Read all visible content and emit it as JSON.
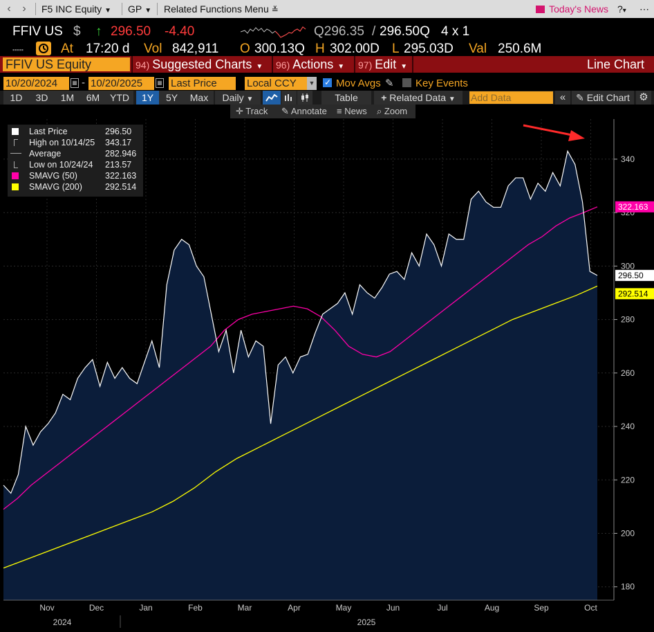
{
  "topbar": {
    "security_menu": "F5 INC Equity",
    "gp_menu": "GP",
    "related_menu": "Related Functions Menu",
    "news_label": "Today's News"
  },
  "quote": {
    "ticker": "FFIV US",
    "currency_symbol": "$",
    "last": "296.50",
    "change": "-4.40",
    "bid": "Q296.35",
    "ask": "296.50Q",
    "size": "4 x 1",
    "at_label": "At",
    "time": "17:20 d",
    "vol_label": "Vol",
    "vol": "842,911",
    "open_label": "O",
    "open": "300.13Q",
    "high_label": "H",
    "high": "302.00D",
    "low_label": "L",
    "low": "295.03D",
    "val_label": "Val",
    "val": "250.6M"
  },
  "funcbar": {
    "ticker_field": "FFIV US Equity",
    "items": [
      {
        "num": "94)",
        "label": "Suggested Charts"
      },
      {
        "num": "96)",
        "label": "Actions"
      },
      {
        "num": "97)",
        "label": "Edit"
      }
    ],
    "chart_type": "Line Chart"
  },
  "settings": {
    "start_date": "10/20/2024",
    "end_date": "10/20/2025",
    "field": "Last Price",
    "currency": "Local CCY",
    "mov_avgs": "Mov Avgs",
    "key_events": "Key Events"
  },
  "periods": [
    "1D",
    "3D",
    "1M",
    "6M",
    "YTD",
    "1Y",
    "5Y",
    "Max"
  ],
  "active_period": "1Y",
  "frequency": "Daily",
  "table_label": "Table",
  "related_data": "Related Data",
  "add_data_placeholder": "Add Data",
  "edit_chart": "Edit Chart",
  "tools": [
    "Track",
    "Annotate",
    "News",
    "Zoom"
  ],
  "legend": [
    {
      "label": "Last Price",
      "value": "296.50",
      "color": "#ffffff"
    },
    {
      "label": "High on 10/14/25",
      "value": "343.17",
      "color": ""
    },
    {
      "label": "Average",
      "value": "282.946",
      "color": ""
    },
    {
      "label": "Low on 10/24/24",
      "value": "213.57",
      "color": ""
    },
    {
      "label": "SMAVG (50)",
      "value": "322.163",
      "color": "#ff00a8"
    },
    {
      "label": "SMAVG (200)",
      "value": "292.514",
      "color": "#ffff00"
    }
  ],
  "chart_data": {
    "type": "area",
    "ylim": [
      175,
      355
    ],
    "yticks": [
      180,
      200,
      220,
      240,
      260,
      280,
      300,
      320,
      340
    ],
    "month_labels": [
      "Nov",
      "Dec",
      "Jan",
      "Feb",
      "Mar",
      "Apr",
      "May",
      "Jun",
      "Jul",
      "Aug",
      "Sep",
      "Oct"
    ],
    "year_labels": [
      "2024",
      "2025"
    ],
    "series": [
      {
        "name": "Last Price",
        "color": "#ffffff",
        "values": [
          218,
          215,
          222,
          240,
          233,
          238,
          241,
          245,
          252,
          250,
          258,
          262,
          265,
          255,
          264,
          258,
          262,
          258,
          256,
          264,
          272,
          262,
          293,
          306,
          310,
          308,
          300,
          296,
          282,
          268,
          276,
          260,
          276,
          266,
          272,
          270,
          241,
          263,
          266,
          260,
          266,
          267,
          275,
          282,
          284,
          286,
          290,
          282,
          293,
          290,
          288,
          292,
          297,
          298,
          295,
          305,
          300,
          312,
          308,
          300,
          312,
          310,
          310,
          325,
          328,
          324,
          322,
          322,
          330,
          333,
          333,
          325,
          331,
          328,
          335,
          330,
          343,
          338,
          324,
          298,
          296.5
        ]
      },
      {
        "name": "SMAVG (50)",
        "color": "#ff00a8",
        "values": [
          209,
          213,
          218,
          222,
          226,
          230,
          234,
          238,
          242,
          246,
          250,
          254,
          258,
          262,
          266,
          270,
          276,
          280,
          282,
          283,
          284,
          285,
          284,
          281,
          276,
          270,
          267,
          266,
          268,
          272,
          276,
          280,
          284,
          288,
          292,
          296,
          300,
          304,
          308,
          311,
          315,
          318,
          320,
          322.163
        ]
      },
      {
        "name": "SMAVG (200)",
        "color": "#ffff00",
        "values": [
          187,
          190,
          193,
          196,
          199,
          202,
          205,
          208,
          212,
          217,
          223,
          228,
          232,
          236,
          240,
          244,
          248,
          252,
          256,
          260,
          264,
          268,
          272,
          276,
          280,
          283,
          286,
          289,
          292.514
        ]
      }
    ],
    "last_price_label": "296.50",
    "sma50_label": "322.163",
    "sma200_label": "292.514",
    "grid": true,
    "annotation": "red arrow pointing to the October peak"
  }
}
